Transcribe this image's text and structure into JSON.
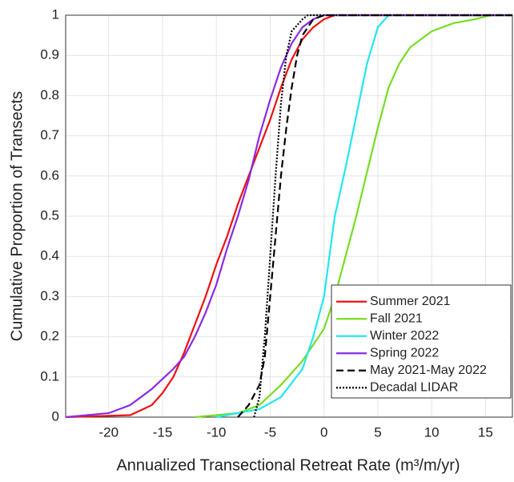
{
  "chart_data": {
    "type": "line",
    "xlabel": "Annualized Transectional Retreat Rate (m³/m/yr)",
    "ylabel": "Cumulative Proportion of Transects",
    "xlim": [
      -24,
      17.5
    ],
    "ylim": [
      0,
      1
    ],
    "xticks": [
      -20,
      -15,
      -10,
      -5,
      0,
      5,
      10,
      15
    ],
    "yticks": [
      0,
      0.1,
      0.2,
      0.3,
      0.4,
      0.5,
      0.6,
      0.7,
      0.8,
      0.9,
      1
    ],
    "grid": true,
    "legend": "southeast",
    "series": [
      {
        "name": "Summer 2021",
        "color": "#ee1111",
        "linestyle": "solid",
        "x": [
          -24,
          -18,
          -16,
          -15,
          -14,
          -13,
          -12,
          -11,
          -10,
          -9,
          -8,
          -7,
          -6,
          -5,
          -4,
          -3,
          -2,
          -1,
          0,
          1,
          17.5
        ],
        "values": [
          0,
          0.005,
          0.03,
          0.06,
          0.1,
          0.16,
          0.23,
          0.3,
          0.38,
          0.45,
          0.53,
          0.6,
          0.67,
          0.74,
          0.82,
          0.89,
          0.94,
          0.97,
          0.99,
          1,
          1
        ]
      },
      {
        "name": "Fall 2021",
        "color": "#77dd22",
        "linestyle": "solid",
        "x": [
          -12,
          -8,
          -6,
          -4,
          -2,
          0,
          1,
          2,
          3,
          4,
          5,
          6,
          7,
          8,
          10,
          12,
          14,
          15.5,
          17.5
        ],
        "values": [
          0,
          0.01,
          0.03,
          0.08,
          0.14,
          0.22,
          0.3,
          0.4,
          0.5,
          0.61,
          0.72,
          0.82,
          0.88,
          0.92,
          0.96,
          0.98,
          0.99,
          1,
          1
        ]
      },
      {
        "name": "Winter 2022",
        "color": "#22e6f0",
        "linestyle": "solid",
        "x": [
          -10,
          -8,
          -6,
          -4,
          -2,
          -1,
          0,
          0.5,
          1,
          2,
          3,
          4,
          5,
          6,
          17.5
        ],
        "values": [
          0,
          0.01,
          0.02,
          0.05,
          0.12,
          0.2,
          0.3,
          0.4,
          0.5,
          0.62,
          0.75,
          0.88,
          0.97,
          1,
          1
        ]
      },
      {
        "name": "Spring 2022",
        "color": "#8a2be2",
        "linestyle": "solid",
        "x": [
          -24,
          -20,
          -18,
          -16,
          -14,
          -13,
          -12,
          -11,
          -10,
          -9,
          -8,
          -7,
          -6,
          -5,
          -4,
          -3,
          -2,
          -1,
          0,
          17.5
        ],
        "values": [
          0,
          0.01,
          0.03,
          0.07,
          0.12,
          0.15,
          0.2,
          0.26,
          0.33,
          0.42,
          0.5,
          0.59,
          0.7,
          0.79,
          0.87,
          0.93,
          0.97,
          0.99,
          1,
          1
        ]
      },
      {
        "name": "May 2021-May 2022",
        "color": "#000000",
        "linestyle": "dashed",
        "x": [
          -8,
          -7,
          -6,
          -5.5,
          -5,
          -4.5,
          -4,
          -3.5,
          -3,
          -2.5,
          -2,
          -1,
          0,
          17.5
        ],
        "values": [
          0,
          0.03,
          0.08,
          0.15,
          0.3,
          0.45,
          0.6,
          0.72,
          0.82,
          0.9,
          0.95,
          0.99,
          1,
          1
        ]
      },
      {
        "name": "Decadal LIDAR",
        "color": "#000000",
        "linestyle": "dotted",
        "x": [
          -6.5,
          -6,
          -5.5,
          -5,
          -4.5,
          -4,
          -3.5,
          -3,
          -2,
          -1.5,
          17.5
        ],
        "values": [
          0,
          0.05,
          0.2,
          0.4,
          0.6,
          0.78,
          0.9,
          0.96,
          0.99,
          1,
          1
        ]
      }
    ]
  }
}
